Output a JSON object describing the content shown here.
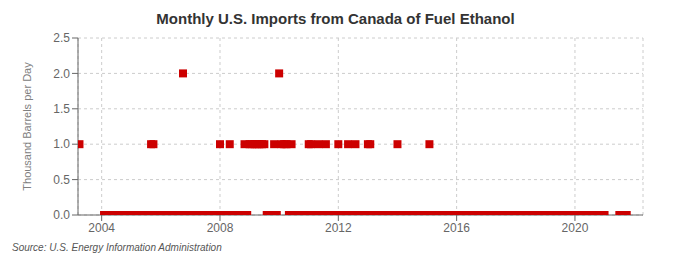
{
  "chart_data": {
    "type": "scatter",
    "title": "Monthly U.S. Imports from Canada of Fuel Ethanol",
    "y_label": "Thousand Barrels per Day",
    "annotations": [
      "Source: U.S. Energy Information Administration"
    ],
    "color": "#cc0000",
    "marker": "square",
    "grid": true,
    "xlim": [
      2003.2,
      2022.3
    ],
    "xticks": [
      2004,
      2008,
      2012,
      2016,
      2020
    ],
    "ylim": [
      0.0,
      2.5
    ],
    "yticks": [
      {
        "value": 0.0,
        "label": "0.0"
      },
      {
        "value": 0.5,
        "label": "0.5"
      },
      {
        "value": 1.0,
        "label": "1.0"
      },
      {
        "value": 1.5,
        "label": "1.5"
      },
      {
        "value": 2.0,
        "label": "2.0"
      },
      {
        "value": 2.5,
        "label": "2.5"
      }
    ],
    "x": [
      2003.25,
      2004.08,
      2004.17,
      2004.25,
      2004.33,
      2004.42,
      2004.5,
      2004.58,
      2004.67,
      2004.75,
      2004.83,
      2004.92,
      2005.0,
      2005.08,
      2005.17,
      2005.25,
      2005.33,
      2005.42,
      2005.5,
      2005.58,
      2005.67,
      2005.75,
      2005.83,
      2005.92,
      2006.0,
      2006.08,
      2006.17,
      2006.25,
      2006.33,
      2006.42,
      2006.5,
      2006.58,
      2006.67,
      2006.75,
      2006.83,
      2006.92,
      2007.0,
      2007.08,
      2007.17,
      2007.25,
      2007.33,
      2007.42,
      2007.5,
      2007.58,
      2007.67,
      2007.75,
      2007.83,
      2007.92,
      2008.0,
      2008.08,
      2008.17,
      2008.25,
      2008.33,
      2008.42,
      2008.5,
      2008.58,
      2008.67,
      2008.75,
      2008.83,
      2008.92,
      2009.0,
      2009.08,
      2009.17,
      2009.25,
      2009.33,
      2009.42,
      2009.5,
      2009.58,
      2009.67,
      2009.75,
      2009.83,
      2009.92,
      2010.0,
      2010.08,
      2010.17,
      2010.25,
      2010.33,
      2010.42,
      2010.5,
      2010.58,
      2010.67,
      2010.75,
      2010.83,
      2010.92,
      2011.0,
      2011.08,
      2011.17,
      2011.25,
      2011.33,
      2011.42,
      2011.5,
      2011.58,
      2011.67,
      2011.75,
      2011.83,
      2011.92,
      2012.0,
      2012.08,
      2012.17,
      2012.25,
      2012.33,
      2012.42,
      2012.5,
      2012.58,
      2012.67,
      2012.75,
      2012.83,
      2012.92,
      2013.0,
      2013.08,
      2013.17,
      2013.25,
      2013.33,
      2013.42,
      2013.5,
      2013.58,
      2013.67,
      2013.75,
      2013.83,
      2013.92,
      2014.0,
      2014.08,
      2014.17,
      2014.25,
      2014.33,
      2014.42,
      2014.5,
      2014.58,
      2014.67,
      2014.75,
      2014.83,
      2014.92,
      2015.0,
      2015.08,
      2015.17,
      2015.25,
      2015.33,
      2015.42,
      2015.5,
      2015.58,
      2015.67,
      2015.75,
      2015.83,
      2015.92,
      2016.0,
      2016.08,
      2016.17,
      2016.25,
      2016.33,
      2016.42,
      2016.5,
      2016.58,
      2016.67,
      2016.75,
      2016.83,
      2016.92,
      2017.0,
      2017.08,
      2017.17,
      2017.25,
      2017.33,
      2017.42,
      2017.5,
      2017.58,
      2017.67,
      2017.75,
      2017.83,
      2017.92,
      2018.0,
      2018.08,
      2018.17,
      2018.25,
      2018.33,
      2018.42,
      2018.5,
      2018.58,
      2018.67,
      2018.75,
      2018.83,
      2018.92,
      2019.0,
      2019.08,
      2019.17,
      2019.25,
      2019.33,
      2019.42,
      2019.5,
      2019.58,
      2019.67,
      2019.75,
      2019.83,
      2019.92,
      2020.0,
      2020.08,
      2020.17,
      2020.25,
      2020.33,
      2020.42,
      2020.5,
      2020.58,
      2020.67,
      2020.75,
      2020.83,
      2020.92,
      2021.0,
      2021.5,
      2021.75
    ],
    "values": [
      1.0,
      0.0,
      0.0,
      0.0,
      0.0,
      0.0,
      0.0,
      0.0,
      0.0,
      0.0,
      0.0,
      0.0,
      0.0,
      0.0,
      0.0,
      0.0,
      0.0,
      0.0,
      0.0,
      0.0,
      1.0,
      1.0,
      0.0,
      0.0,
      0.0,
      0.0,
      0.0,
      0.0,
      0.0,
      0.0,
      0.0,
      0.0,
      0.0,
      2.0,
      0.0,
      0.0,
      0.0,
      0.0,
      0.0,
      0.0,
      0.0,
      0.0,
      0.0,
      0.0,
      0.0,
      0.0,
      0.0,
      0.0,
      1.0,
      0.0,
      0.0,
      0.0,
      1.0,
      0.0,
      0.0,
      0.0,
      0.0,
      0.0,
      1.0,
      0.0,
      1.0,
      1.0,
      1.0,
      1.0,
      1.0,
      1.0,
      1.0,
      0.0,
      0.0,
      0.0,
      1.0,
      0.0,
      2.0,
      1.0,
      1.0,
      1.0,
      0.0,
      1.0,
      0.0,
      0.0,
      0.0,
      0.0,
      0.0,
      0.0,
      1.0,
      1.0,
      0.0,
      0.0,
      1.0,
      0.0,
      0.0,
      1.0,
      0.0,
      0.0,
      0.0,
      0.0,
      1.0,
      0.0,
      0.0,
      0.0,
      1.0,
      0.0,
      0.0,
      1.0,
      0.0,
      0.0,
      0.0,
      0.0,
      1.0,
      1.0,
      0.0,
      0.0,
      0.0,
      0.0,
      0.0,
      0.0,
      0.0,
      0.0,
      0.0,
      0.0,
      1.0,
      0.0,
      0.0,
      0.0,
      0.0,
      0.0,
      0.0,
      0.0,
      0.0,
      0.0,
      0.0,
      0.0,
      0.0,
      1.0,
      0.0,
      0.0,
      0.0,
      0.0,
      0.0,
      0.0,
      0.0,
      0.0,
      0.0,
      0.0,
      0.0,
      0.0,
      0.0,
      0.0,
      0.0,
      0.0,
      0.0,
      0.0,
      0.0,
      0.0,
      0.0,
      0.0,
      0.0,
      0.0,
      0.0,
      0.0,
      0.0,
      0.0,
      0.0,
      0.0,
      0.0,
      0.0,
      0.0,
      0.0,
      0.0,
      0.0,
      0.0,
      0.0,
      0.0,
      0.0,
      0.0,
      0.0,
      0.0,
      0.0,
      0.0,
      0.0,
      0.0,
      0.0,
      0.0,
      0.0,
      0.0,
      0.0,
      0.0,
      0.0,
      0.0,
      0.0,
      0.0,
      0.0,
      0.0,
      0.0,
      0.0,
      0.0,
      0.0,
      0.0,
      0.0,
      0.0,
      0.0,
      0.0,
      0.0,
      0.0,
      0.0,
      0.0,
      0.0
    ]
  }
}
